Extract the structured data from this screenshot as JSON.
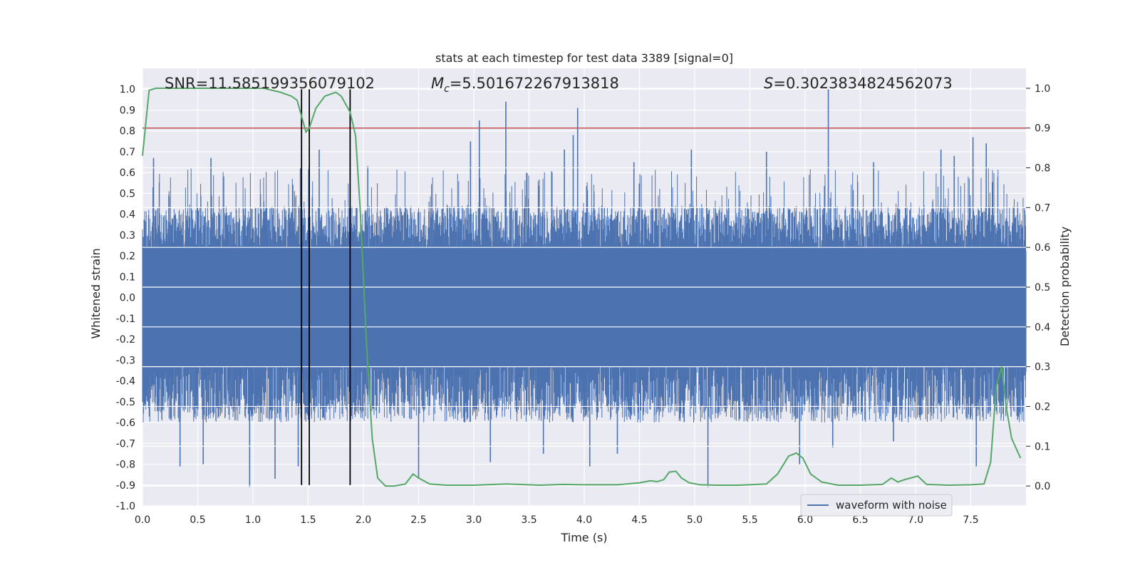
{
  "chart_data": {
    "type": "line",
    "title": "stats at each timestep for test data 3389 [signal=0]",
    "xlabel": "Time (s)",
    "ylabel": "Whitened strain",
    "ylabel_right": "Detection probability",
    "xlim": [
      0,
      8
    ],
    "ylim": [
      -1.0,
      1.1
    ],
    "ylim_right": [
      -0.05,
      1.05
    ],
    "xticks": [
      "0.0",
      "0.5",
      "1.0",
      "1.5",
      "2.0",
      "2.5",
      "3.0",
      "3.5",
      "4.0",
      "4.5",
      "5.0",
      "5.5",
      "6.0",
      "6.5",
      "7.0",
      "7.5"
    ],
    "yticks": [
      "1.0",
      "0.9",
      "0.8",
      "0.7",
      "0.6",
      "0.5",
      "0.4",
      "0.3",
      "0.2",
      "0.1",
      "0.0",
      "-0.1",
      "-0.2",
      "-0.3",
      "-0.4",
      "-0.5",
      "-0.6",
      "-0.7",
      "-0.8",
      "-0.9",
      "-1.0"
    ],
    "yticks_right": [
      "1.0",
      "0.9",
      "0.8",
      "0.7",
      "0.6",
      "0.5",
      "0.4",
      "0.3",
      "0.2",
      "0.1",
      "0.0"
    ],
    "grid": true,
    "legend": {
      "position": "lower-right",
      "entries": [
        "waveform with noise"
      ]
    },
    "annotations": {
      "snr": "SNR=11.585199356079102",
      "mc_symbol": "M",
      "mc_sub": "c",
      "mc_value": "=5.501672267913818",
      "s_symbol": "S",
      "s_value": "=0.3023834824562073"
    },
    "threshold_right": 0.9,
    "vertical_lines_x": [
      1.44,
      1.51,
      1.88
    ],
    "colors": {
      "waveform": "#4c72b0",
      "probability": "#55a868",
      "threshold": "#c44e52",
      "vlines": "#000000",
      "background": "#eaeaf2",
      "grid": "#ffffff"
    },
    "waveform": {
      "name": "waveform with noise",
      "t_range": [
        0,
        8
      ],
      "core_band": [
        -0.33,
        0.24
      ],
      "typical_peak_range": [
        0.22,
        0.62
      ],
      "typical_trough_range": [
        -0.6,
        -0.28
      ],
      "spikes": [
        {
          "x": 0.97,
          "y": -0.91
        },
        {
          "x": 0.34,
          "y": -0.81
        },
        {
          "x": 0.55,
          "y": -0.8
        },
        {
          "x": 0.62,
          "y": 0.67
        },
        {
          "x": 0.1,
          "y": 0.67
        },
        {
          "x": 1.2,
          "y": -0.87
        },
        {
          "x": 1.41,
          "y": -0.81
        },
        {
          "x": 1.43,
          "y": 0.62
        },
        {
          "x": 1.6,
          "y": 0.71
        },
        {
          "x": 2.04,
          "y": 0.63
        },
        {
          "x": 2.5,
          "y": -0.87
        },
        {
          "x": 2.97,
          "y": 0.75
        },
        {
          "x": 3.05,
          "y": 0.85
        },
        {
          "x": 3.15,
          "y": -0.79
        },
        {
          "x": 3.29,
          "y": 0.94
        },
        {
          "x": 3.63,
          "y": -0.75
        },
        {
          "x": 3.82,
          "y": 0.71
        },
        {
          "x": 3.9,
          "y": 0.78
        },
        {
          "x": 3.94,
          "y": 0.91
        },
        {
          "x": 4.05,
          "y": -0.81
        },
        {
          "x": 4.3,
          "y": -0.75
        },
        {
          "x": 4.45,
          "y": 0.65
        },
        {
          "x": 4.97,
          "y": 0.71
        },
        {
          "x": 5.12,
          "y": -0.91
        },
        {
          "x": 5.65,
          "y": 0.7
        },
        {
          "x": 5.95,
          "y": -0.8
        },
        {
          "x": 6.21,
          "y": 1.0
        },
        {
          "x": 6.25,
          "y": -0.72
        },
        {
          "x": 6.62,
          "y": 0.65
        },
        {
          "x": 6.8,
          "y": -0.69
        },
        {
          "x": 7.23,
          "y": 0.71
        },
        {
          "x": 7.35,
          "y": 0.68
        },
        {
          "x": 7.52,
          "y": 0.77
        },
        {
          "x": 7.55,
          "y": -0.81
        },
        {
          "x": 7.64,
          "y": 0.74
        }
      ]
    },
    "probability": {
      "x": [
        0.0,
        0.06,
        0.12,
        0.25,
        0.5,
        0.75,
        1.0,
        1.1,
        1.25,
        1.35,
        1.4,
        1.44,
        1.48,
        1.51,
        1.57,
        1.65,
        1.75,
        1.8,
        1.88,
        1.93,
        1.97,
        2.03,
        2.08,
        2.13,
        2.2,
        2.28,
        2.38,
        2.45,
        2.5,
        2.6,
        2.75,
        3.0,
        3.3,
        3.6,
        3.8,
        4.0,
        4.3,
        4.5,
        4.6,
        4.66,
        4.72,
        4.77,
        4.83,
        4.88,
        4.95,
        5.05,
        5.2,
        5.4,
        5.65,
        5.75,
        5.85,
        5.92,
        5.98,
        6.05,
        6.15,
        6.3,
        6.5,
        6.7,
        6.78,
        6.84,
        6.9,
        7.02,
        7.1,
        7.3,
        7.5,
        7.62,
        7.68,
        7.73,
        7.78,
        7.82,
        7.87,
        7.95
      ],
      "y": [
        0.83,
        0.995,
        1.0,
        1.0,
        1.0,
        1.0,
        1.0,
        1.0,
        0.99,
        0.98,
        0.97,
        0.93,
        0.89,
        0.9,
        0.95,
        0.98,
        0.99,
        0.98,
        0.94,
        0.88,
        0.7,
        0.35,
        0.12,
        0.02,
        0.0,
        0.0,
        0.005,
        0.03,
        0.02,
        0.005,
        0.002,
        0.002,
        0.005,
        0.002,
        0.004,
        0.003,
        0.003,
        0.008,
        0.013,
        0.011,
        0.016,
        0.035,
        0.037,
        0.02,
        0.008,
        0.003,
        0.002,
        0.002,
        0.005,
        0.03,
        0.075,
        0.083,
        0.07,
        0.03,
        0.01,
        0.002,
        0.002,
        0.004,
        0.02,
        0.01,
        0.016,
        0.025,
        0.004,
        0.002,
        0.003,
        0.005,
        0.06,
        0.25,
        0.3,
        0.2,
        0.12,
        0.07
      ]
    }
  }
}
